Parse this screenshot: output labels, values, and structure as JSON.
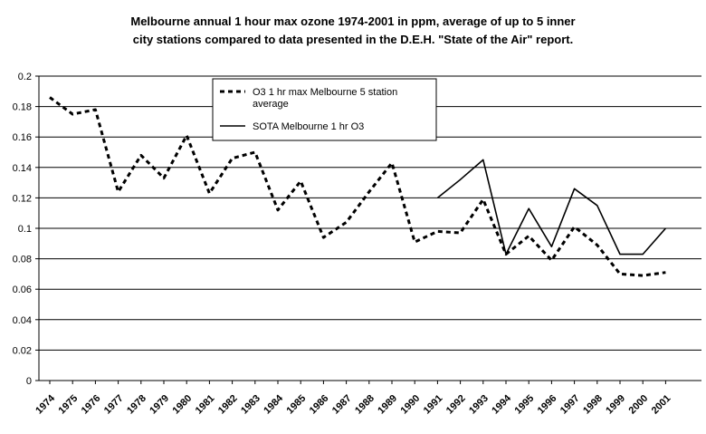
{
  "chart_data": {
    "type": "line",
    "title_lines": [
      "Melbourne annual 1 hour max ozone 1974-2001 in ppm, average of up to 5 inner",
      "city stations compared to data presented in the D.E.H. \"State of the Air\" report."
    ],
    "xlabel": "",
    "ylabel": "",
    "ylim": [
      0,
      0.2
    ],
    "y_ticks": [
      "0",
      "0.02",
      "0.04",
      "0.06",
      "0.08",
      "0.1",
      "0.12",
      "0.14",
      "0.16",
      "0.18",
      "0.2"
    ],
    "x": [
      "1974",
      "1975",
      "1976",
      "1977",
      "1978",
      "1979",
      "1980",
      "1981",
      "1982",
      "1983",
      "1984",
      "1985",
      "1986",
      "1987",
      "1988",
      "1989",
      "1990",
      "1991",
      "1992",
      "1993",
      "1994",
      "1995",
      "1996",
      "1997",
      "1998",
      "1999",
      "2000",
      "2001"
    ],
    "series": [
      {
        "name": "O3 1 hr max Melbourne 5 station average",
        "legend_lines": [
          "O3 1 hr max Melbourne 5 station",
          "average"
        ],
        "style": "dashed",
        "values": [
          0.186,
          0.175,
          0.178,
          0.124,
          0.148,
          0.133,
          0.161,
          0.123,
          0.146,
          0.15,
          0.112,
          0.131,
          0.094,
          0.104,
          0.124,
          0.143,
          0.091,
          0.098,
          0.097,
          0.119,
          0.083,
          0.095,
          0.079,
          0.101,
          0.089,
          0.07,
          0.069,
          0.071
        ]
      },
      {
        "name": "SOTA Melbourne 1 hr O3",
        "legend_lines": [
          "SOTA Melbourne 1 hr O3"
        ],
        "style": "solid",
        "values": [
          null,
          null,
          null,
          null,
          null,
          null,
          null,
          null,
          null,
          null,
          null,
          null,
          null,
          null,
          null,
          null,
          null,
          0.12,
          0.132,
          0.145,
          0.083,
          0.113,
          0.088,
          0.126,
          0.115,
          0.083,
          0.083,
          0.1
        ]
      }
    ],
    "grid": true,
    "legend_position": "top-left"
  }
}
